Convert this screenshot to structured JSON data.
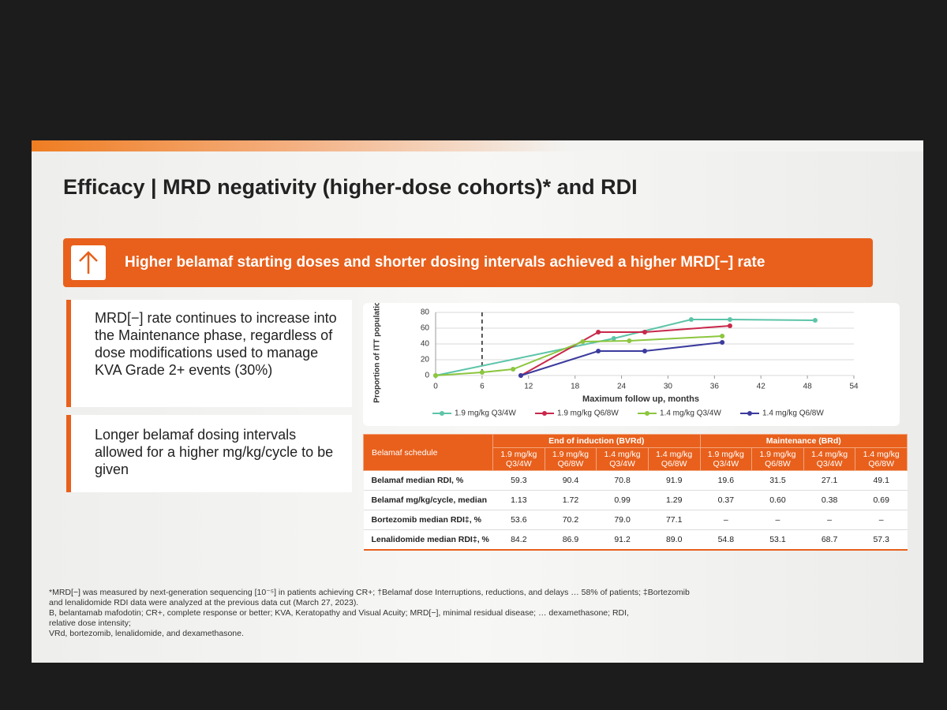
{
  "title": "Efficacy | MRD negativity (higher-dose cohorts)* and RDI",
  "banner": "Higher belamaf starting doses and shorter dosing intervals achieved a higher MRD[−] rate",
  "bullets": [
    "MRD[−] rate continues to increase into the Maintenance phase, regardless of dose modifications used to manage KVA Grade 2+ events (30%)",
    "Longer belamaf dosing intervals allowed for a higher mg/kg/cycle to be given"
  ],
  "chart_data": {
    "type": "line",
    "y_label": "Proportion of ITT population, %",
    "x_label": "Maximum follow up, months",
    "xlim": [
      0,
      54
    ],
    "xticks": [
      0,
      6,
      12,
      18,
      24,
      30,
      36,
      42,
      48,
      54
    ],
    "ylim": [
      0,
      80
    ],
    "yticks": [
      0,
      20,
      40,
      60,
      80
    ],
    "grid": true,
    "reference_x": 6,
    "series": [
      {
        "name": "1.9 mg/kg Q3/4W",
        "color": "#5cc4a8",
        "x": [
          0,
          23,
          33,
          38,
          49
        ],
        "values": [
          0,
          47,
          71,
          71,
          70
        ]
      },
      {
        "name": "1.9 mg/kg Q6/8W",
        "color": "#c8284a",
        "x": [
          11,
          21,
          27,
          38
        ],
        "values": [
          0,
          55,
          55,
          63
        ]
      },
      {
        "name": "1.4 mg/kg Q3/4W",
        "color": "#8cc63f",
        "x": [
          0,
          6,
          10,
          19,
          25,
          37
        ],
        "values": [
          0,
          4,
          8,
          43,
          44,
          50
        ]
      },
      {
        "name": "1.4 mg/kg Q6/8W",
        "color": "#3b3b9e",
        "x": [
          11,
          21,
          27,
          37
        ],
        "values": [
          0,
          31,
          31,
          42
        ]
      }
    ]
  },
  "table": {
    "groups": [
      "End of induction (BVRd)",
      "Maintenance (BRd)"
    ],
    "corner": "Belamaf schedule",
    "columns": [
      "1.9 mg/kg Q3/4W",
      "1.9 mg/kg Q6/8W",
      "1.4 mg/kg Q3/4W",
      "1.4 mg/kg Q6/8W",
      "1.9 mg/kg Q3/4W",
      "1.9 mg/kg Q6/8W",
      "1.4 mg/kg Q3/4W",
      "1.4 mg/kg Q6/8W"
    ],
    "rows": [
      {
        "label": "Belamaf median RDI, %",
        "cells": [
          "59.3",
          "90.4",
          "70.8",
          "91.9",
          "19.6",
          "31.5",
          "27.1",
          "49.1"
        ]
      },
      {
        "label": "Belamaf mg/kg/cycle, median",
        "cells": [
          "1.13",
          "1.72",
          "0.99",
          "1.29",
          "0.37",
          "0.60",
          "0.38",
          "0.69"
        ]
      },
      {
        "label": "Bortezomib median RDI‡, %",
        "cells": [
          "53.6",
          "70.2",
          "79.0",
          "77.1",
          "–",
          "–",
          "–",
          "–"
        ]
      },
      {
        "label": "Lenalidomide median RDI‡, %",
        "cells": [
          "84.2",
          "86.9",
          "91.2",
          "89.0",
          "54.8",
          "53.1",
          "68.7",
          "57.3"
        ]
      }
    ]
  },
  "footnotes": [
    "*MRD[−] was measured by next-generation sequencing [10⁻⁵] in patients achieving CR+; †Belamaf dose Interruptions, reductions, and delays … 58% of patients; ‡Bortezomib",
    "and lenalidomide RDI data were analyzed at the previous data cut (March 27, 2023).",
    "B, belantamab mafodotin; CR+, complete response or better; KVA, Keratopathy and Visual Acuity; MRD[−], minimal residual disease; … dexamethasone; RDI,",
    "relative dose intensity;",
    "VRd, bortezomib, lenalidomide, and dexamethasone."
  ]
}
